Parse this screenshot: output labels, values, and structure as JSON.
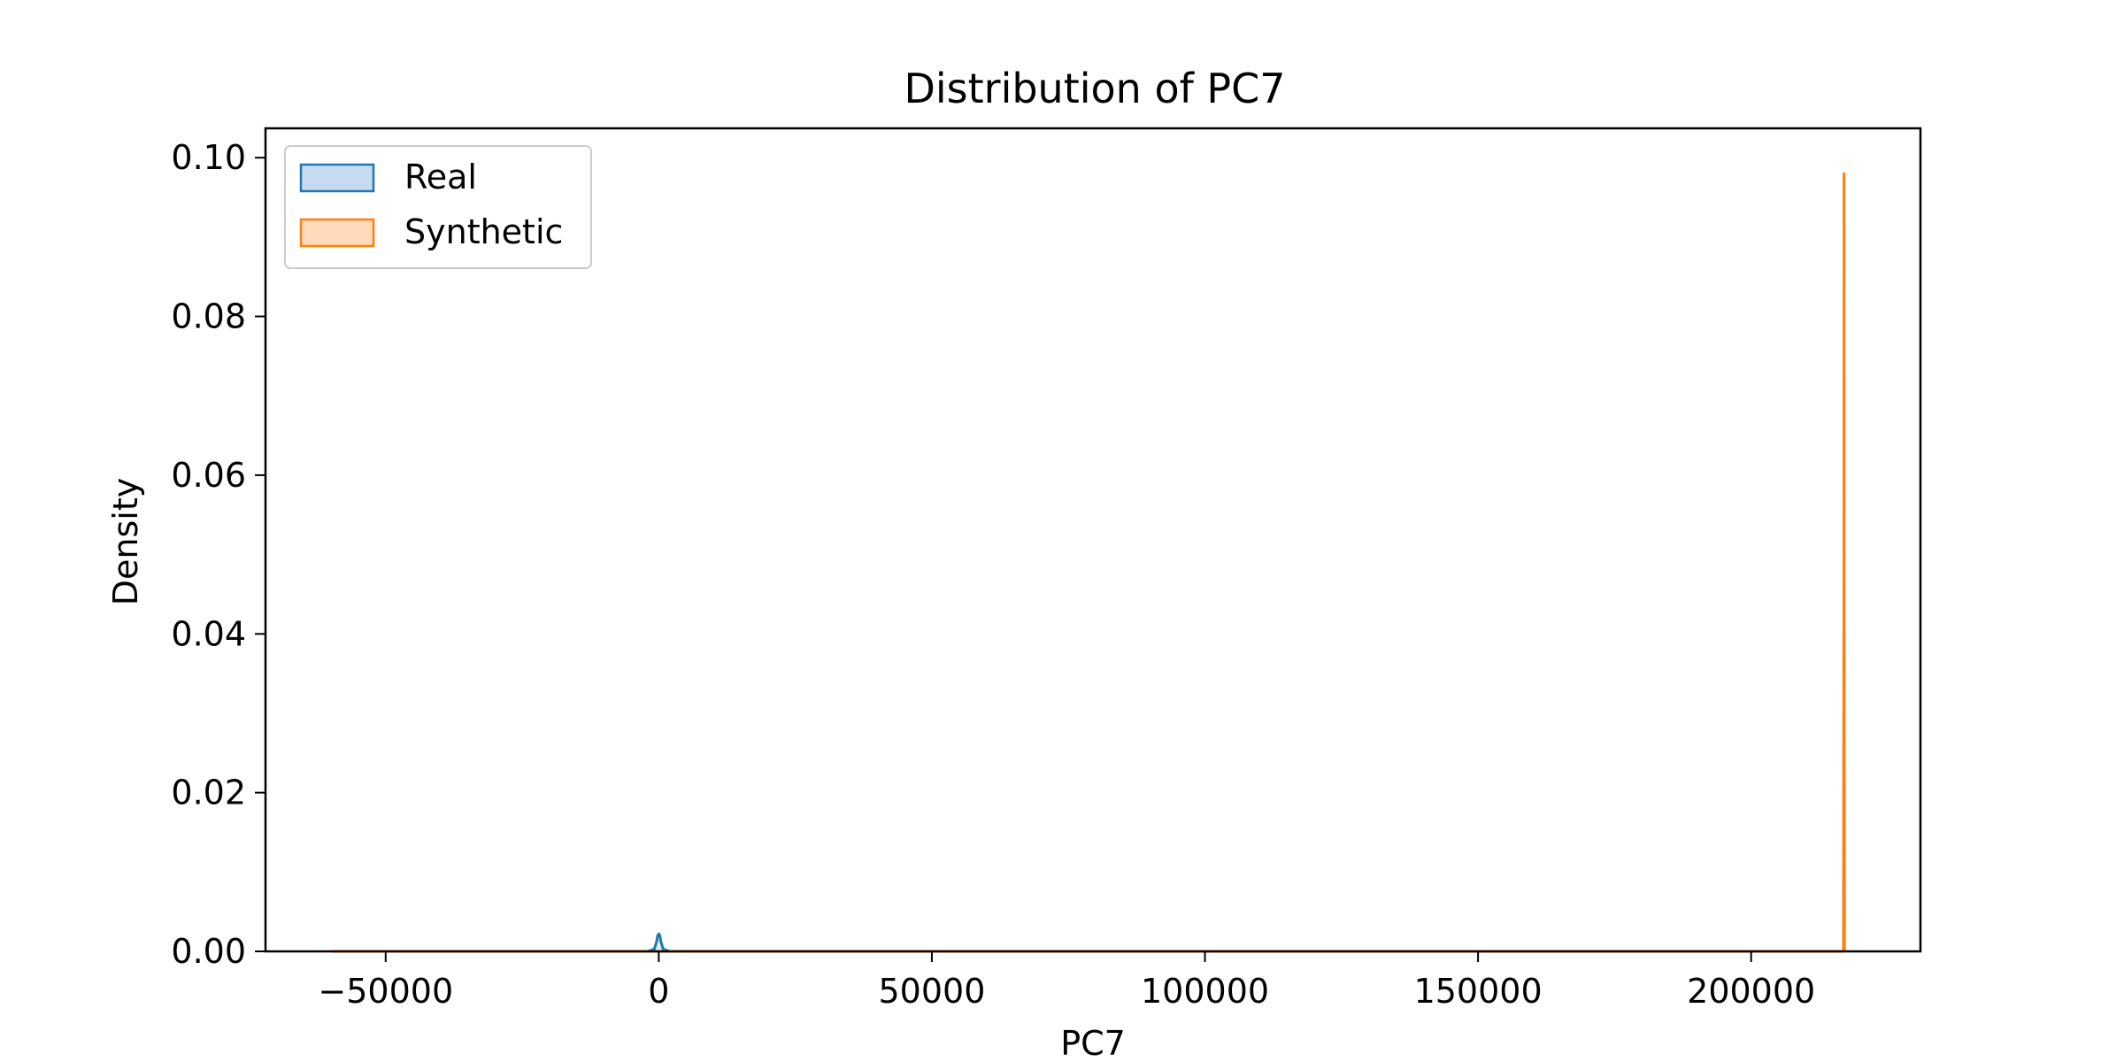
{
  "chart_data": {
    "type": "area",
    "title": "Distribution of PC7",
    "xlabel": "PC7",
    "ylabel": "Density",
    "xlim": [
      -72000,
      231000
    ],
    "ylim": [
      0,
      0.1037
    ],
    "xticks": [
      -50000,
      0,
      50000,
      100000,
      150000,
      200000
    ],
    "xtick_labels": [
      "−50000",
      "0",
      "50000",
      "100000",
      "150000",
      "200000"
    ],
    "yticks": [
      0,
      0.02,
      0.04,
      0.06,
      0.08,
      0.1
    ],
    "ytick_labels": [
      "0.00",
      "0.02",
      "0.04",
      "0.06",
      "0.08",
      "0.10"
    ],
    "grid": false,
    "legend_position": "top-left",
    "series": [
      {
        "name": "Real",
        "color": "#1f77b4",
        "fill": "#c6dbef",
        "x": [
          -60000,
          -2000,
          -800,
          -400,
          -200,
          0,
          200,
          400,
          800,
          2000,
          217000
        ],
        "y": [
          0,
          0,
          0.0003,
          0.0012,
          0.002,
          0.0022,
          0.002,
          0.0012,
          0.0003,
          0,
          0
        ]
      },
      {
        "name": "Synthetic",
        "color": "#ff7f0e",
        "fill": "#ffdbbb",
        "x": [
          -60000,
          216900,
          216990,
          217000,
          217010,
          217100
        ],
        "y": [
          0,
          0,
          0.05,
          0.098,
          0.05,
          0
        ]
      }
    ]
  }
}
